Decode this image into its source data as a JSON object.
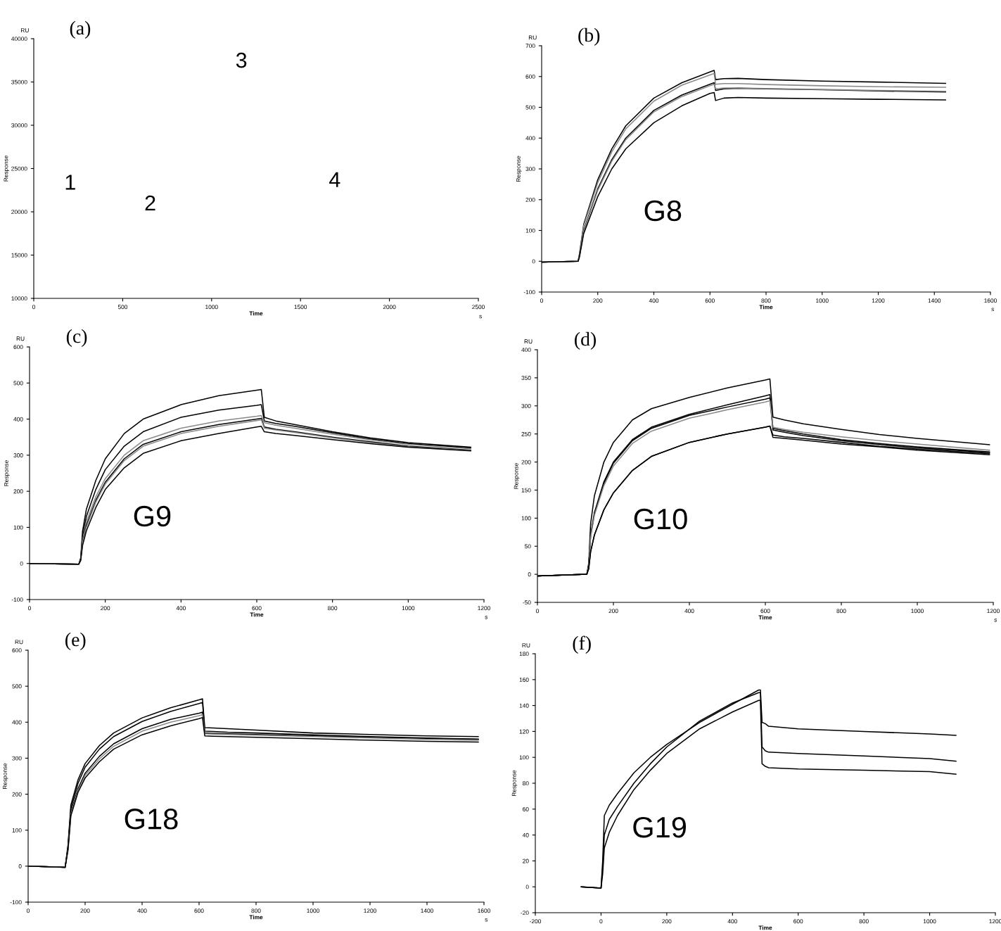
{
  "chart_data": [
    {
      "type": "line",
      "title": "(a)",
      "xlabel": "Time",
      "ylabel": "Response",
      "xlim": [
        0,
        2500
      ],
      "xticks": [
        0,
        500,
        1000,
        1500,
        2000,
        2500
      ],
      "ylim": [
        10000,
        40000
      ],
      "yticks": [
        10000,
        15000,
        20000,
        25000,
        30000,
        35000,
        40000
      ],
      "annotations": [
        "RU",
        "s",
        "1",
        "2",
        "3",
        "4"
      ]
    },
    {
      "type": "line",
      "title": "(b)",
      "xlabel": "Time",
      "ylabel": "Response",
      "xlim": [
        0,
        1600
      ],
      "xticks": [
        0,
        200,
        400,
        600,
        800,
        1000,
        1200,
        1400,
        1600
      ],
      "ylim": [
        -100,
        700
      ],
      "yticks": [
        -100,
        0,
        100,
        200,
        300,
        400,
        500,
        600,
        700
      ],
      "annotations": [
        "RU",
        "s",
        "G8"
      ],
      "x": [
        0,
        130,
        135,
        150,
        200,
        250,
        300,
        400,
        500,
        600,
        615,
        620,
        650,
        700,
        800,
        1000,
        1200,
        1440
      ],
      "series": [
        {
          "color": "#000000",
          "values": [
            -3,
            0,
            25,
            120,
            265,
            365,
            440,
            530,
            580,
            615,
            620,
            590,
            593,
            594,
            590,
            585,
            582,
            578
          ]
        },
        {
          "color": "#8a8a8a",
          "values": [
            -3,
            0,
            22,
            115,
            255,
            355,
            430,
            520,
            572,
            605,
            610,
            575,
            577,
            577,
            574,
            570,
            567,
            565
          ]
        },
        {
          "color": "#000000",
          "values": [
            -3,
            0,
            18,
            100,
            235,
            330,
            400,
            490,
            540,
            575,
            580,
            555,
            560,
            562,
            560,
            557,
            553,
            550
          ]
        },
        {
          "color": "#8a8a8a",
          "values": [
            -3,
            0,
            17,
            98,
            230,
            325,
            395,
            485,
            535,
            570,
            575,
            560,
            563,
            563,
            561,
            558,
            555,
            552
          ]
        },
        {
          "color": "#000000",
          "values": [
            -3,
            0,
            15,
            90,
            210,
            300,
            365,
            450,
            505,
            545,
            548,
            522,
            530,
            532,
            530,
            528,
            526,
            524
          ]
        }
      ]
    },
    {
      "type": "line",
      "title": "(c)",
      "xlabel": "Time",
      "ylabel": "Response",
      "xlim": [
        0,
        1200
      ],
      "xticks": [
        0,
        200,
        400,
        600,
        800,
        1000,
        1200
      ],
      "ylim": [
        -100,
        600
      ],
      "yticks": [
        -100,
        0,
        100,
        200,
        300,
        400,
        500,
        600
      ],
      "annotations": [
        "RU",
        "s",
        "G9"
      ],
      "x": [
        0,
        130,
        135,
        140,
        150,
        175,
        200,
        250,
        300,
        400,
        500,
        600,
        612,
        620,
        650,
        700,
        800,
        900,
        1000,
        1165
      ],
      "series": [
        {
          "color": "#000000",
          "values": [
            0,
            -2,
            15,
            90,
            150,
            230,
            290,
            360,
            400,
            440,
            465,
            480,
            482,
            405,
            395,
            385,
            365,
            348,
            335,
            322
          ]
        },
        {
          "color": "#000000",
          "values": [
            0,
            -2,
            12,
            75,
            130,
            205,
            260,
            325,
            365,
            405,
            425,
            438,
            440,
            395,
            388,
            380,
            362,
            345,
            332,
            320
          ]
        },
        {
          "color": "#8a8a8a",
          "values": [
            0,
            -2,
            10,
            65,
            115,
            185,
            235,
            300,
            340,
            375,
            395,
            408,
            410,
            390,
            383,
            375,
            358,
            342,
            330,
            318
          ]
        },
        {
          "color": "#000000",
          "values": [
            0,
            -2,
            10,
            60,
            105,
            175,
            225,
            290,
            330,
            365,
            385,
            400,
            402,
            378,
            372,
            365,
            350,
            337,
            325,
            314
          ]
        },
        {
          "color": "#8a8a8a",
          "values": [
            0,
            -2,
            9,
            58,
            100,
            170,
            220,
            285,
            325,
            360,
            380,
            396,
            398,
            375,
            370,
            363,
            348,
            335,
            323,
            313
          ]
        },
        {
          "color": "#000000",
          "values": [
            0,
            -2,
            8,
            50,
            90,
            155,
            205,
            265,
            305,
            340,
            360,
            378,
            380,
            365,
            360,
            355,
            343,
            332,
            322,
            312
          ]
        }
      ]
    },
    {
      "type": "line",
      "title": "(d)",
      "xlabel": "Time",
      "ylabel": "Response",
      "xlim": [
        0,
        1200
      ],
      "xticks": [
        0,
        200,
        400,
        600,
        800,
        1000,
        1200
      ],
      "ylim": [
        -50,
        400
      ],
      "yticks": [
        -50,
        0,
        50,
        100,
        150,
        200,
        250,
        300,
        350,
        400
      ],
      "annotations": [
        "RU",
        "s",
        "G10"
      ],
      "x": [
        0,
        130,
        135,
        140,
        150,
        175,
        200,
        250,
        300,
        400,
        500,
        600,
        612,
        620,
        650,
        700,
        800,
        900,
        1000,
        1190
      ],
      "series": [
        {
          "color": "#000000",
          "values": [
            -3,
            0,
            20,
            90,
            140,
            200,
            235,
            275,
            295,
            315,
            332,
            346,
            348,
            280,
            275,
            268,
            258,
            249,
            242,
            231
          ]
        },
        {
          "color": "#000000",
          "values": [
            -3,
            0,
            15,
            70,
            110,
            165,
            200,
            240,
            262,
            285,
            302,
            318,
            320,
            260,
            256,
            250,
            240,
            233,
            227,
            218
          ]
        },
        {
          "color": "#000000",
          "values": [
            -3,
            0,
            15,
            68,
            108,
            162,
            198,
            238,
            260,
            283,
            298,
            312,
            314,
            257,
            253,
            247,
            238,
            231,
            225,
            217
          ]
        },
        {
          "color": "#8a8a8a",
          "values": [
            -3,
            0,
            14,
            66,
            105,
            158,
            193,
            233,
            255,
            278,
            293,
            307,
            309,
            262,
            258,
            253,
            245,
            238,
            232,
            221
          ]
        },
        {
          "color": "#000000",
          "values": [
            -3,
            0,
            10,
            40,
            70,
            115,
            145,
            185,
            210,
            235,
            250,
            262,
            264,
            248,
            245,
            242,
            235,
            228,
            223,
            215
          ]
        },
        {
          "color": "#000000",
          "values": [
            -3,
            0,
            10,
            40,
            70,
            115,
            145,
            185,
            210,
            235,
            250,
            262,
            264,
            244,
            242,
            239,
            232,
            227,
            221,
            213
          ]
        }
      ]
    },
    {
      "type": "line",
      "title": "(e)",
      "xlabel": "Time",
      "ylabel": "Response",
      "xlim": [
        0,
        1600
      ],
      "xticks": [
        0,
        200,
        400,
        600,
        800,
        1000,
        1200,
        1400,
        1600
      ],
      "ylim": [
        -100,
        600
      ],
      "yticks": [
        -100,
        0,
        100,
        200,
        300,
        400,
        500,
        600
      ],
      "annotations": [
        "RU",
        "s",
        "G18"
      ],
      "x": [
        0,
        130,
        140,
        150,
        175,
        200,
        250,
        300,
        400,
        500,
        600,
        612,
        620,
        650,
        700,
        800,
        1000,
        1200,
        1400,
        1580
      ],
      "series": [
        {
          "color": "#000000",
          "values": [
            0,
            -3,
            60,
            170,
            240,
            285,
            335,
            370,
            412,
            440,
            462,
            465,
            385,
            384,
            382,
            378,
            370,
            366,
            362,
            360
          ]
        },
        {
          "color": "#000000",
          "values": [
            0,
            -3,
            55,
            160,
            230,
            275,
            325,
            360,
            402,
            430,
            452,
            455,
            375,
            374,
            372,
            370,
            365,
            360,
            356,
            353
          ]
        },
        {
          "color": "#000000",
          "values": [
            0,
            -3,
            50,
            150,
            215,
            258,
            305,
            340,
            382,
            408,
            425,
            428,
            370,
            369,
            368,
            366,
            362,
            358,
            355,
            352
          ]
        },
        {
          "color": "#8a8a8a",
          "values": [
            0,
            -3,
            48,
            145,
            210,
            252,
            298,
            333,
            375,
            400,
            418,
            421,
            368,
            367,
            366,
            364,
            360,
            356,
            352,
            350
          ]
        },
        {
          "color": "#000000",
          "values": [
            0,
            -3,
            45,
            140,
            205,
            245,
            290,
            325,
            365,
            390,
            410,
            413,
            362,
            361,
            360,
            358,
            354,
            350,
            347,
            345
          ]
        }
      ]
    },
    {
      "type": "line",
      "title": "(f)",
      "xlabel": "Time",
      "ylabel": "Response",
      "xlim": [
        -200,
        1200
      ],
      "xticks": [
        -200,
        0,
        200,
        400,
        600,
        800,
        1000,
        1200
      ],
      "ylim": [
        -20,
        180
      ],
      "yticks": [
        -20,
        0,
        20,
        40,
        60,
        80,
        100,
        120,
        140,
        160,
        180
      ],
      "annotations": [
        "RU",
        "G19"
      ],
      "x": [
        -60,
        0,
        5,
        10,
        25,
        50,
        100,
        150,
        200,
        300,
        400,
        480,
        485,
        490,
        500,
        510,
        600,
        800,
        1000,
        1080
      ],
      "series": [
        {
          "color": "#000000",
          "values": [
            0,
            -1,
            20,
            55,
            63,
            72,
            88,
            100,
            110,
            127,
            141,
            152,
            152,
            127,
            126,
            124,
            122,
            120,
            118,
            117
          ]
        },
        {
          "color": "#000000",
          "values": [
            0,
            -1,
            15,
            40,
            52,
            62,
            80,
            95,
            108,
            128,
            142,
            150,
            150,
            108,
            105,
            104,
            103,
            101,
            99,
            97
          ]
        },
        {
          "color": "#000000",
          "values": [
            0,
            -1,
            10,
            30,
            42,
            55,
            75,
            90,
            103,
            122,
            135,
            144,
            144,
            95,
            93,
            92,
            91,
            90,
            89,
            87
          ]
        }
      ]
    }
  ]
}
